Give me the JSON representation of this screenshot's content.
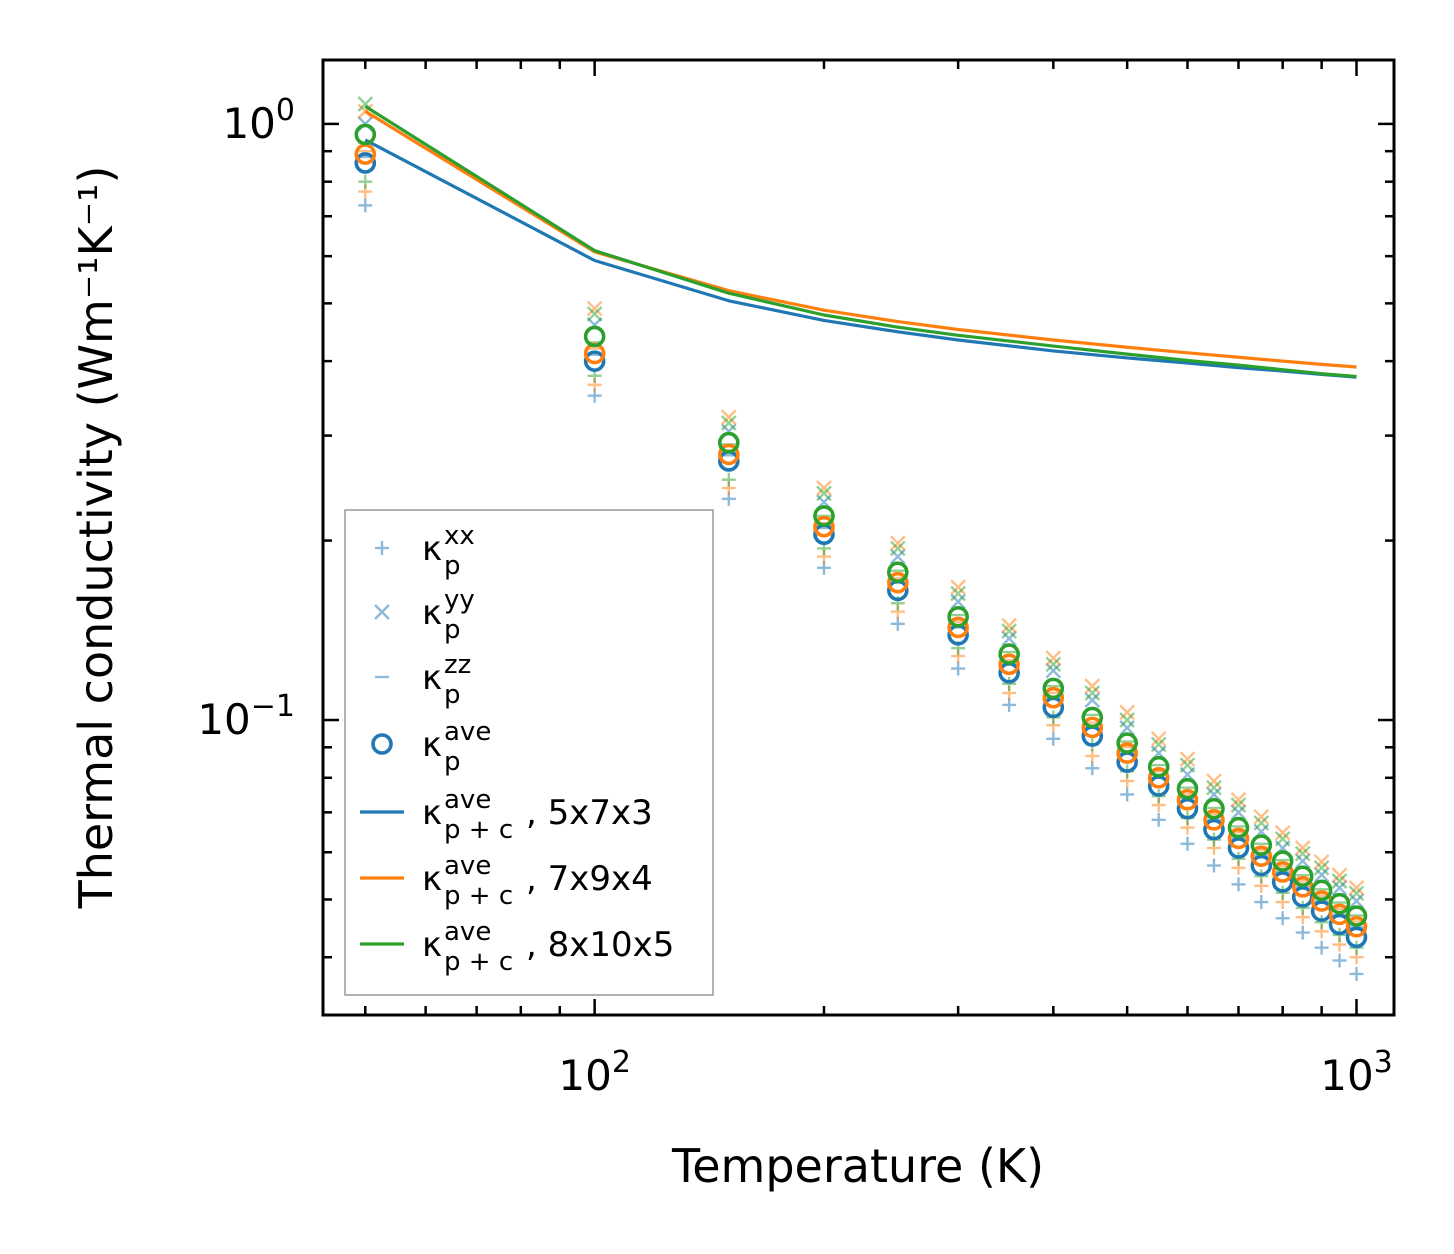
{
  "chart_data": {
    "type": "line",
    "xscale": "log",
    "yscale": "log",
    "xlabel": "Temperature (K)",
    "ylabel": "Thermal conductivity (Wm⁻¹K⁻¹)",
    "xlim": [
      44,
      1120
    ],
    "ylim": [
      0.032,
      1.28
    ],
    "xticks": [
      {
        "value": 100,
        "base": "10",
        "exp": "2"
      },
      {
        "value": 1000,
        "base": "10",
        "exp": "3"
      }
    ],
    "yticks": [
      {
        "value": 0.1,
        "base": "10",
        "exp": "−1"
      },
      {
        "value": 1,
        "base": "10",
        "exp": "0"
      }
    ],
    "legend_position": "lower-left",
    "colors": {
      "blue": "#1f77b4",
      "orange": "#ff7f0e",
      "green": "#2ca02c"
    },
    "point_temperatures": [
      50,
      100,
      150,
      200,
      250,
      300,
      350,
      400,
      450,
      500,
      550,
      600,
      650,
      700,
      750,
      800,
      850,
      900,
      950,
      1000
    ],
    "point_series": [
      {
        "name": "kp_xx",
        "marker": "plus",
        "blue": [
          0.73,
          0.35,
          0.235,
          0.18,
          0.145,
          0.122,
          0.106,
          0.093,
          0.083,
          0.075,
          0.068,
          0.062,
          0.057,
          0.053,
          0.0495,
          0.0465,
          0.044,
          0.0415,
          0.0395,
          0.0375
        ],
        "orange": [
          0.77,
          0.365,
          0.245,
          0.188,
          0.152,
          0.128,
          0.111,
          0.098,
          0.087,
          0.079,
          0.072,
          0.066,
          0.061,
          0.0565,
          0.0527,
          0.0495,
          0.0467,
          0.0442,
          0.042,
          0.04
        ],
        "green": [
          0.8,
          0.378,
          0.253,
          0.194,
          0.157,
          0.132,
          0.115,
          0.101,
          0.091,
          0.082,
          0.0745,
          0.0685,
          0.063,
          0.0585,
          0.0547,
          0.0513,
          0.0484,
          0.0458,
          0.0436,
          0.0415
        ]
      },
      {
        "name": "kp_yy",
        "marker": "x",
        "blue": [
          1.0,
          0.46,
          0.305,
          0.232,
          0.188,
          0.158,
          0.137,
          0.121,
          0.108,
          0.097,
          0.088,
          0.081,
          0.075,
          0.07,
          0.065,
          0.061,
          0.058,
          0.055,
          0.0523,
          0.0497
        ],
        "orange": [
          1.05,
          0.49,
          0.322,
          0.245,
          0.198,
          0.167,
          0.144,
          0.127,
          0.114,
          0.103,
          0.093,
          0.086,
          0.079,
          0.0735,
          0.0688,
          0.0647,
          0.061,
          0.0578,
          0.0549,
          0.0523
        ],
        "green": [
          1.08,
          0.48,
          0.315,
          0.24,
          0.194,
          0.163,
          0.141,
          0.124,
          0.111,
          0.1,
          0.091,
          0.084,
          0.077,
          0.072,
          0.0672,
          0.0632,
          0.0597,
          0.0565,
          0.0537,
          0.0512
        ]
      },
      {
        "name": "kp_zz",
        "marker": "hline",
        "blue": [
          0.88,
          0.41,
          0.278,
          0.21,
          0.17,
          0.143,
          0.124,
          0.109,
          0.097,
          0.088,
          0.08,
          0.074,
          0.068,
          0.0635,
          0.0592,
          0.0556,
          0.0525,
          0.0496,
          0.0471,
          0.0449
        ],
        "orange": [
          0.9,
          0.42,
          0.283,
          0.214,
          0.173,
          0.146,
          0.126,
          0.111,
          0.099,
          0.09,
          0.082,
          0.075,
          0.0695,
          0.0648,
          0.0605,
          0.0568,
          0.0536,
          0.0507,
          0.0482,
          0.0459
        ],
        "green": [
          0.93,
          0.43,
          0.29,
          0.22,
          0.178,
          0.15,
          0.13,
          0.114,
          0.102,
          0.092,
          0.084,
          0.077,
          0.0712,
          0.0663,
          0.062,
          0.0582,
          0.0549,
          0.052,
          0.0494,
          0.047
        ]
      }
    ],
    "ave_points": {
      "name": "kp_ave",
      "marker": "circle",
      "blue": [
        0.86,
        0.4,
        0.272,
        0.205,
        0.165,
        0.139,
        0.12,
        0.105,
        0.094,
        0.085,
        0.0775,
        0.071,
        0.0655,
        0.061,
        0.057,
        0.0535,
        0.0505,
        0.0478,
        0.0454,
        0.0432
      ],
      "orange": [
        0.89,
        0.412,
        0.279,
        0.211,
        0.17,
        0.143,
        0.124,
        0.109,
        0.0972,
        0.088,
        0.08,
        0.0735,
        0.068,
        0.0633,
        0.0591,
        0.0556,
        0.0525,
        0.0497,
        0.0472,
        0.045
      ],
      "green": [
        0.96,
        0.44,
        0.292,
        0.22,
        0.177,
        0.149,
        0.129,
        0.113,
        0.101,
        0.0915,
        0.0835,
        0.0767,
        0.071,
        0.066,
        0.0617,
        0.058,
        0.0547,
        0.0518,
        0.0492,
        0.0469
      ]
    },
    "line_series": [
      {
        "name": "kp+c ave, 5x7x3",
        "color": "#1f77b4",
        "x": [
          50,
          100,
          150,
          200,
          250,
          300,
          400,
          500,
          600,
          700,
          800,
          900,
          1000
        ],
        "y": [
          0.94,
          0.59,
          0.505,
          0.468,
          0.448,
          0.434,
          0.416,
          0.405,
          0.397,
          0.39,
          0.385,
          0.38,
          0.376
        ]
      },
      {
        "name": "kp+c ave, 7x9x4",
        "color": "#ff7f0e",
        "x": [
          50,
          100,
          150,
          200,
          250,
          300,
          400,
          500,
          600,
          700,
          800,
          900,
          1000
        ],
        "y": [
          1.05,
          0.61,
          0.525,
          0.487,
          0.466,
          0.452,
          0.434,
          0.422,
          0.413,
          0.406,
          0.4,
          0.395,
          0.391
        ]
      },
      {
        "name": "kp+c ave, 8x10x5",
        "color": "#2ca02c",
        "x": [
          50,
          100,
          150,
          200,
          250,
          300,
          400,
          500,
          600,
          700,
          800,
          900,
          1000
        ],
        "y": [
          1.07,
          0.613,
          0.52,
          0.478,
          0.456,
          0.442,
          0.424,
          0.411,
          0.401,
          0.394,
          0.387,
          0.381,
          0.377
        ]
      }
    ],
    "legend": [
      {
        "marker": "plus",
        "symbol": "κ",
        "sub": "p",
        "sup": "xx",
        "suffix": ""
      },
      {
        "marker": "x",
        "symbol": "κ",
        "sub": "p",
        "sup": "yy",
        "suffix": ""
      },
      {
        "marker": "hline",
        "symbol": "κ",
        "sub": "p",
        "sup": "zz",
        "suffix": ""
      },
      {
        "marker": "circle",
        "symbol": "κ",
        "sub": "p",
        "sup": "ave",
        "suffix": ""
      },
      {
        "marker": "line",
        "color": "#1f77b4",
        "symbol": "κ",
        "sub": "p + c",
        "sup": "ave",
        "suffix": ", 5x7x3"
      },
      {
        "marker": "line",
        "color": "#ff7f0e",
        "symbol": "κ",
        "sub": "p + c",
        "sup": "ave",
        "suffix": ", 7x9x4"
      },
      {
        "marker": "line",
        "color": "#2ca02c",
        "symbol": "κ",
        "sub": "p + c",
        "sup": "ave",
        "suffix": ", 8x10x5"
      }
    ]
  }
}
